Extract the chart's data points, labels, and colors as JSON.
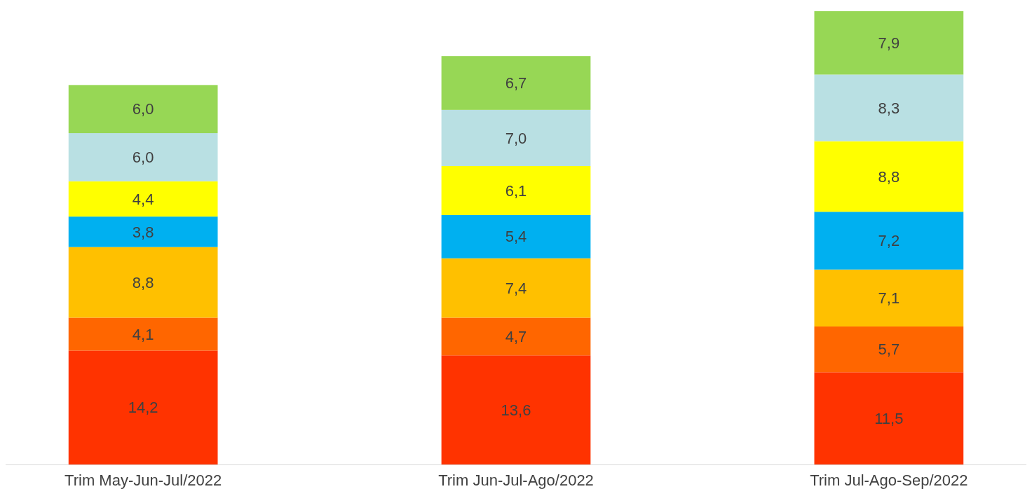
{
  "chart_data": {
    "type": "bar",
    "stacked": true,
    "categories": [
      "Trim May-Jun-Jul/2022",
      "Trim Jun-Jul-Ago/2022",
      "Trim Jul-Ago-Sep/2022"
    ],
    "series": [
      {
        "color": "#ff3300",
        "values": [
          14.2,
          13.6,
          11.5
        ],
        "value_labels": [
          "14,2",
          "13,6",
          "11,5"
        ]
      },
      {
        "color": "#ff6600",
        "values": [
          4.1,
          4.7,
          5.7
        ],
        "value_labels": [
          "4,1",
          "4,7",
          "5,7"
        ]
      },
      {
        "color": "#ffc000",
        "values": [
          8.8,
          7.4,
          7.1
        ],
        "value_labels": [
          "8,8",
          "7,4",
          "7,1"
        ]
      },
      {
        "color": "#00b0f0",
        "values": [
          3.8,
          5.4,
          7.2
        ],
        "value_labels": [
          "3,8",
          "5,4",
          "7,2"
        ]
      },
      {
        "color": "#ffff00",
        "values": [
          4.4,
          6.1,
          8.8
        ],
        "value_labels": [
          "4,4",
          "6,1",
          "8,8"
        ]
      },
      {
        "color": "#b9e0e3",
        "values": [
          6.0,
          7.0,
          8.3
        ],
        "value_labels": [
          "6,0",
          "7,0",
          "8,3"
        ]
      },
      {
        "color": "#97d755",
        "values": [
          6.0,
          6.7,
          7.9
        ],
        "value_labels": [
          "6,0",
          "6,7",
          "7,9"
        ]
      }
    ]
  }
}
